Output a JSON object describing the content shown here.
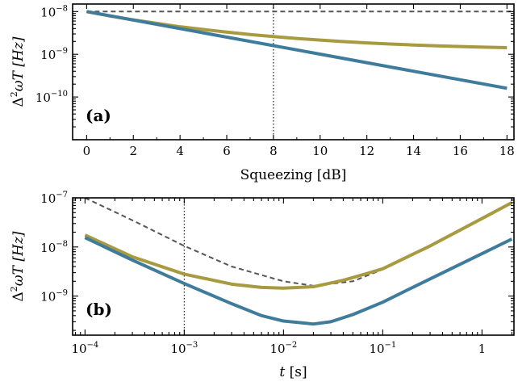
{
  "chart_data": [
    {
      "type": "line",
      "panel_label": "(a)",
      "xlabel": "Squeezing [dB]",
      "ylabel_prefix": "Δ",
      "ylabel_sup": "2",
      "ylabel_suffix": "ωT  [Hz]",
      "xlim": [
        -0.6,
        18.3
      ],
      "ylim": [
        1e-11,
        1.5e-08
      ],
      "yscale": "log",
      "x_ticks": [
        0,
        2,
        4,
        6,
        8,
        10,
        12,
        14,
        16,
        18
      ],
      "y_ticks": [
        {
          "value": 1e-08,
          "base": "10",
          "exp": "−8"
        },
        {
          "value": 1e-09,
          "base": "10",
          "exp": "−9"
        },
        {
          "value": 1e-10,
          "base": "10",
          "exp": "−10"
        }
      ],
      "vline_x": 8,
      "series": [
        {
          "style": "dashed",
          "color": "#555555",
          "x": [
            0,
            18.3
          ],
          "y": [
            1e-08,
            1e-08
          ]
        },
        {
          "style": "solid",
          "color": "#a89a40",
          "x": [
            0,
            1,
            2,
            3,
            4,
            5,
            6,
            7,
            8,
            9,
            10,
            11,
            12,
            13,
            14,
            15,
            16,
            17,
            18
          ],
          "y": [
            1e-08,
            7.9e-09,
            6.4e-09,
            5.3e-09,
            4.4e-09,
            3.8e-09,
            3.3e-09,
            2.9e-09,
            2.6e-09,
            2.35e-09,
            2.15e-09,
            1.98e-09,
            1.85e-09,
            1.74e-09,
            1.65e-09,
            1.58e-09,
            1.52e-09,
            1.47e-09,
            1.43e-09
          ]
        },
        {
          "style": "solid",
          "color": "#3f7c9c",
          "x": [
            0,
            18
          ],
          "y": [
            1e-08,
            1.6e-10
          ]
        }
      ]
    },
    {
      "type": "line",
      "panel_label": "(b)",
      "xlabel_var": "t",
      "xlabel_unit": "[s]",
      "ylabel_prefix": "Δ",
      "ylabel_sup": "2",
      "ylabel_suffix": "ωT  [Hz]",
      "xscale": "log",
      "yscale": "log",
      "xlim": [
        7.5e-05,
        2.1
      ],
      "ylim": [
        1.6e-10,
        1e-07
      ],
      "x_ticks": [
        {
          "value": 0.0001,
          "base": "10",
          "exp": "−4"
        },
        {
          "value": 0.001,
          "base": "10",
          "exp": "−3"
        },
        {
          "value": 0.01,
          "base": "10",
          "exp": "−2"
        },
        {
          "value": 0.1,
          "base": "10",
          "exp": "−1"
        },
        {
          "value": 1,
          "base": "1",
          "exp": ""
        }
      ],
      "y_ticks": [
        {
          "value": 1e-07,
          "base": "10",
          "exp": "−7"
        },
        {
          "value": 1e-08,
          "base": "10",
          "exp": "−8"
        },
        {
          "value": 1e-09,
          "base": "10",
          "exp": "−9"
        }
      ],
      "vline_x": 0.001,
      "series": [
        {
          "style": "dashed",
          "color": "#555555",
          "x": [
            0.0001,
            0.0003,
            0.001,
            0.003,
            0.01,
            0.02,
            0.05,
            0.1,
            0.3,
            1,
            2
          ],
          "y": [
            1e-07,
            3.5e-08,
            1.05e-08,
            4e-09,
            2e-09,
            1.62e-09,
            2e-09,
            3.5e-09,
            1.05e-08,
            3.8e-08,
            8e-08
          ]
        },
        {
          "style": "solid",
          "color": "#a89a40",
          "x": [
            0.0001,
            0.0003,
            0.001,
            0.003,
            0.006,
            0.01,
            0.02,
            0.04,
            0.07,
            0.1,
            0.3,
            1,
            2
          ],
          "y": [
            1.75e-08,
            6.3e-09,
            2.8e-09,
            1.75e-09,
            1.5e-09,
            1.45e-09,
            1.55e-09,
            2.1e-09,
            2.9e-09,
            3.6e-09,
            1.05e-08,
            3.8e-08,
            8e-08
          ]
        },
        {
          "style": "solid",
          "color": "#3f7c9c",
          "x": [
            0.0001,
            0.0003,
            0.001,
            0.003,
            0.006,
            0.01,
            0.02,
            0.03,
            0.05,
            0.1,
            0.2,
            0.5,
            1,
            2
          ],
          "y": [
            1.55e-08,
            5.4e-09,
            1.8e-09,
            7e-10,
            4e-10,
            3.1e-10,
            2.7e-10,
            3e-10,
            4.2e-10,
            7.5e-10,
            1.5e-09,
            3.7e-09,
            7.3e-09,
            1.45e-08
          ]
        }
      ]
    }
  ]
}
